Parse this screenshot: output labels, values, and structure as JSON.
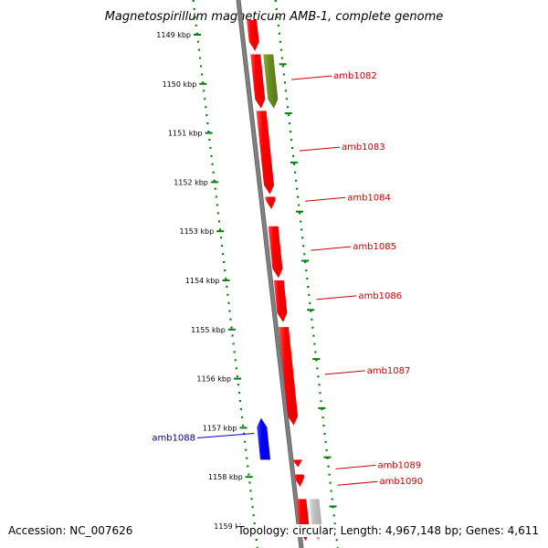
{
  "title": "Magnetospirillum magneticum AMB-1, complete genome",
  "footer": {
    "accession": "Accession: NC_007626",
    "summary": "Topology: circular; Length: 4,967,148 bp; Genes: 4,611"
  },
  "colors": {
    "forward_gene": "#ff0000",
    "reverse_gene": "#0000ff",
    "other_gene": "#6b8e23",
    "unlabeled_gene": "#bfbfbf",
    "backbone": "#808080",
    "ruler": "#008000"
  },
  "chart_data": {
    "type": "genome-map",
    "unit": "kbp",
    "view_kbp": [
      1148.7,
      1159.3
    ],
    "ticks": [
      {
        "kbp": 1149,
        "label": "1149 kbp"
      },
      {
        "kbp": 1150,
        "label": "1150 kbp"
      },
      {
        "kbp": 1151,
        "label": "1151 kbp"
      },
      {
        "kbp": 1152,
        "label": "1152 kbp"
      },
      {
        "kbp": 1153,
        "label": "1153 kbp"
      },
      {
        "kbp": 1154,
        "label": "1154 kbp"
      },
      {
        "kbp": 1155,
        "label": "1155 kbp"
      },
      {
        "kbp": 1156,
        "label": "1156 kbp"
      },
      {
        "kbp": 1157,
        "label": "1157 kbp"
      },
      {
        "kbp": 1158,
        "label": "1158 kbp"
      },
      {
        "kbp": 1159,
        "label": "1159 kbp"
      }
    ],
    "genes": [
      {
        "name": "",
        "strand": "+",
        "start_kbp": 1148.7,
        "end_kbp": 1149.33,
        "color": "#ff0000",
        "track": 0
      },
      {
        "name": "",
        "strand": "+",
        "start_kbp": 1149.4,
        "end_kbp": 1150.5,
        "color": "#ff0000",
        "track": 0
      },
      {
        "name": "amb1082",
        "strand": "+",
        "start_kbp": 1149.4,
        "end_kbp": 1150.5,
        "color": "#6b8e23",
        "track": 1
      },
      {
        "name": "amb1083",
        "strand": "+",
        "start_kbp": 1150.55,
        "end_kbp": 1152.25,
        "color": "#ff0000",
        "track": 0
      },
      {
        "name": "amb1084",
        "strand": "+",
        "start_kbp": 1152.3,
        "end_kbp": 1152.55,
        "color": "#ff0000",
        "track": 0
      },
      {
        "name": "amb1085",
        "strand": "+",
        "start_kbp": 1152.9,
        "end_kbp": 1153.95,
        "color": "#ff0000",
        "track": 0
      },
      {
        "name": "amb1086",
        "strand": "+",
        "start_kbp": 1154.0,
        "end_kbp": 1154.85,
        "color": "#ff0000",
        "track": 0
      },
      {
        "name": "amb1087",
        "strand": "+",
        "start_kbp": 1154.95,
        "end_kbp": 1156.95,
        "color": "#ff0000",
        "track": 0
      },
      {
        "name": "amb1088",
        "strand": "-",
        "start_kbp": 1156.8,
        "end_kbp": 1157.65,
        "color": "#0000ff",
        "track": -1
      },
      {
        "name": "amb1089",
        "strand": "+",
        "start_kbp": 1157.65,
        "end_kbp": 1157.8,
        "color": "#ff0000",
        "track": 0
      },
      {
        "name": "amb1090",
        "strand": "+",
        "start_kbp": 1157.95,
        "end_kbp": 1158.2,
        "color": "#ff0000",
        "track": 0
      },
      {
        "name": "",
        "strand": "+",
        "start_kbp": 1158.45,
        "end_kbp": 1159.3,
        "color": "#ff0000",
        "track": 0
      },
      {
        "name": "",
        "strand": "+",
        "start_kbp": 1158.45,
        "end_kbp": 1159.3,
        "color": "#bfbfbf",
        "track": 1
      }
    ]
  }
}
